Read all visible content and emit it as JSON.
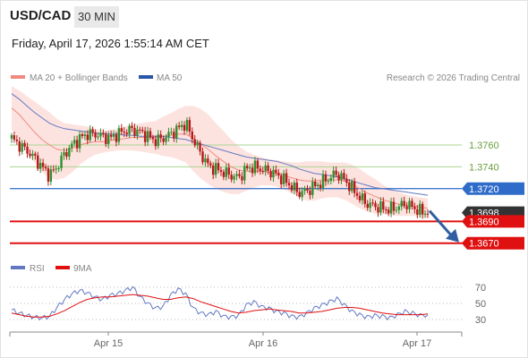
{
  "header": {
    "pair": "USD/CAD",
    "timeframe": "30 MIN",
    "timestamp": "Friday, April 17, 2026 1:55:14 AM CET"
  },
  "legend": {
    "ma20": "MA 20 + Bollinger Bands",
    "ma50": "MA 50",
    "source": "Research © 2026 Trading Central",
    "rsi": "RSI",
    "rsi9": "9MA"
  },
  "colors": {
    "ma20": "#f08a80",
    "bb_fill": "#fde3df",
    "ma50": "#6279c2",
    "resistance": "#a8d490",
    "pivot": "#2f6bc9",
    "support": "#e01010",
    "bull": "#2f8f2f",
    "bear": "#b51a1a",
    "arrow": "#2f5fa0",
    "current": "#333333"
  },
  "chart_data": [
    {
      "type": "candlestick",
      "x_ticks": [
        "Apr 15",
        "Apr 16",
        "Apr 17"
      ],
      "ylim": [
        1.3655,
        1.3815
      ],
      "levels": [
        {
          "label": "1.3760",
          "value": 1.376,
          "kind": "resistance"
        },
        {
          "label": "1.3740",
          "value": 1.374,
          "kind": "resistance"
        },
        {
          "label": "1.3720",
          "value": 1.372,
          "kind": "pivot"
        },
        {
          "label": "1.3698",
          "value": 1.3698,
          "kind": "current"
        },
        {
          "label": "1.3690",
          "value": 1.369,
          "kind": "support"
        },
        {
          "label": "1.3670",
          "value": 1.367,
          "kind": "support"
        }
      ],
      "close_path": [
        1.3766,
        1.376,
        1.3755,
        1.3748,
        1.374,
        1.3732,
        1.374,
        1.3752,
        1.376,
        1.3766,
        1.377,
        1.377,
        1.3768,
        1.3766,
        1.377,
        1.3773,
        1.3774,
        1.3772,
        1.3768,
        1.3764,
        1.3766,
        1.377,
        1.3775,
        1.378,
        1.3765,
        1.3752,
        1.3741,
        1.3738,
        1.3735,
        1.3732,
        1.373,
        1.3738,
        1.374,
        1.3738,
        1.3736,
        1.3733,
        1.3728,
        1.3722,
        1.3716,
        1.3718,
        1.3722,
        1.3726,
        1.373,
        1.3734,
        1.3728,
        1.372,
        1.3712,
        1.3706,
        1.3704,
        1.3702,
        1.3701,
        1.3703,
        1.3706,
        1.3703,
        1.3699,
        1.3698
      ],
      "ma20": [
        1.3794,
        1.3788,
        1.378,
        1.3772,
        1.3765,
        1.376,
        1.3756,
        1.3755,
        1.3757,
        1.376,
        1.3762,
        1.3763,
        1.3763,
        1.3764,
        1.3765,
        1.3766,
        1.3767,
        1.3767,
        1.3767,
        1.3767,
        1.3768,
        1.3769,
        1.377,
        1.377,
        1.3766,
        1.3761,
        1.3756,
        1.375,
        1.3745,
        1.374,
        1.3737,
        1.3736,
        1.3736,
        1.3736,
        1.3735,
        1.3734,
        1.3732,
        1.373,
        1.3728,
        1.3727,
        1.3727,
        1.3728,
        1.3728,
        1.3728,
        1.3727,
        1.3724,
        1.372,
        1.3716,
        1.3713,
        1.371,
        1.3708,
        1.3706,
        1.3705,
        1.3704,
        1.3703,
        1.3702
      ],
      "ma50": [
        1.3807,
        1.3802,
        1.3796,
        1.379,
        1.3785,
        1.378,
        1.3777,
        1.3775,
        1.3774,
        1.3773,
        1.3772,
        1.3771,
        1.377,
        1.377,
        1.377,
        1.3769,
        1.3769,
        1.3768,
        1.3768,
        1.3768,
        1.3768,
        1.3767,
        1.3766,
        1.3765,
        1.3763,
        1.3761,
        1.3759,
        1.3757,
        1.3755,
        1.3753,
        1.3751,
        1.3749,
        1.3748,
        1.3747,
        1.3746,
        1.3745,
        1.3743,
        1.3741,
        1.3738,
        1.3736,
        1.3734,
        1.3733,
        1.3732,
        1.3731,
        1.3729,
        1.3727,
        1.3725,
        1.3723,
        1.3721,
        1.372,
        1.3719,
        1.3718,
        1.3717,
        1.3716,
        1.3715,
        1.3714
      ],
      "bb_width": [
        0.002,
        0.0022,
        0.0025,
        0.0028,
        0.003,
        0.003,
        0.0028,
        0.0025,
        0.0022,
        0.0018,
        0.0015,
        0.0012,
        0.001,
        0.001,
        0.001,
        0.0011,
        0.0012,
        0.0013,
        0.0014,
        0.0015,
        0.0018,
        0.002,
        0.0023,
        0.0026,
        0.003,
        0.0032,
        0.0032,
        0.003,
        0.0028,
        0.0025,
        0.0022,
        0.0018,
        0.0015,
        0.0013,
        0.0012,
        0.0012,
        0.0013,
        0.0014,
        0.0016,
        0.0018,
        0.0018,
        0.0017,
        0.0016,
        0.0016,
        0.0017,
        0.0018,
        0.0018,
        0.0017,
        0.0016,
        0.0014,
        0.0012,
        0.0011,
        0.001,
        0.0009,
        0.0009,
        0.0009
      ],
      "forecast": {
        "from": 1.3698,
        "to": 1.367
      }
    },
    {
      "type": "line",
      "name": "RSI",
      "ylim": [
        20,
        80
      ],
      "y_ticks": [
        70,
        50,
        30
      ],
      "series": [
        {
          "name": "RSI",
          "values": [
            42,
            38,
            35,
            33,
            32,
            34,
            45,
            55,
            62,
            66,
            63,
            58,
            55,
            60,
            62,
            66,
            70,
            58,
            50,
            44,
            46,
            60,
            68,
            62,
            44,
            38,
            36,
            40,
            34,
            33,
            35,
            48,
            52,
            46,
            44,
            40,
            38,
            34,
            33,
            38,
            44,
            48,
            52,
            56,
            48,
            40,
            36,
            33,
            35,
            34,
            32,
            36,
            40,
            38,
            35,
            36
          ]
        },
        {
          "name": "9MA",
          "values": [
            38,
            36,
            34,
            33,
            33,
            34,
            37,
            41,
            46,
            51,
            55,
            57,
            58,
            58,
            59,
            60,
            61,
            60,
            59,
            57,
            55,
            55,
            57,
            58,
            56,
            52,
            49,
            46,
            43,
            40,
            38,
            39,
            41,
            42,
            43,
            42,
            41,
            40,
            38,
            38,
            39,
            40,
            42,
            44,
            45,
            45,
            44,
            42,
            40,
            38,
            37,
            36,
            36,
            36,
            36,
            37
          ]
        }
      ]
    }
  ]
}
